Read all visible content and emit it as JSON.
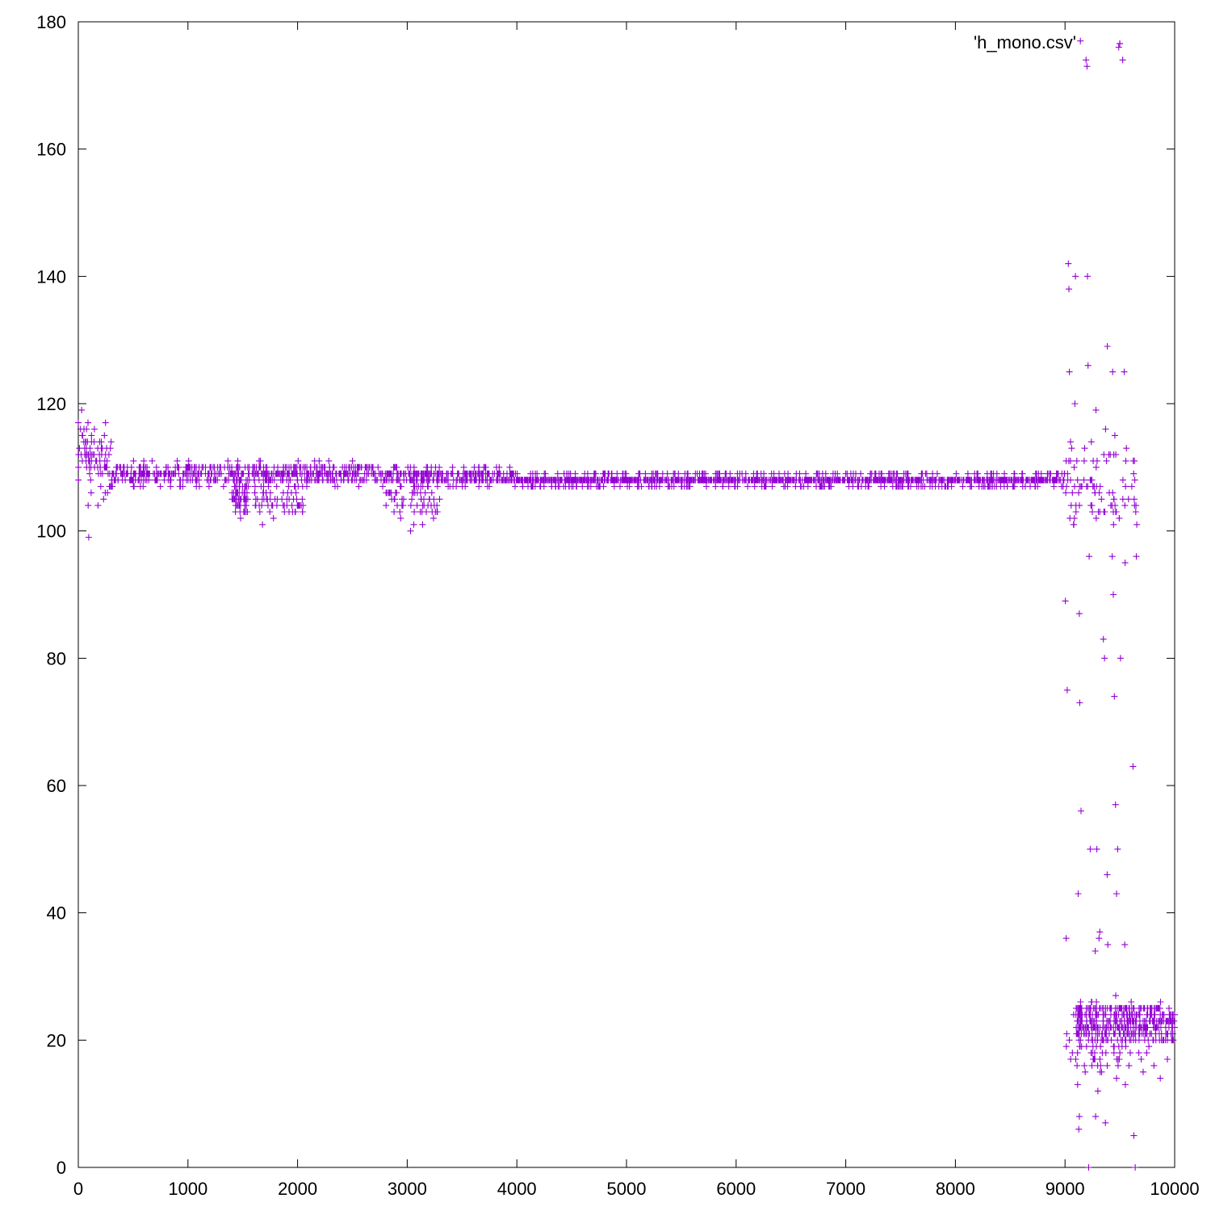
{
  "chart_data": {
    "type": "scatter",
    "title": "",
    "xlabel": "",
    "ylabel": "",
    "xlim": [
      0,
      10000
    ],
    "ylim": [
      0,
      180
    ],
    "x_ticks": [
      0,
      1000,
      2000,
      3000,
      4000,
      5000,
      6000,
      7000,
      8000,
      9000,
      10000
    ],
    "y_ticks": [
      0,
      20,
      40,
      60,
      80,
      100,
      120,
      140,
      160,
      180
    ],
    "x_tick_labels": [
      "0",
      "1000",
      "2000",
      "3000",
      "4000",
      "5000",
      "6000",
      "7000",
      "8000",
      "9000",
      "10000"
    ],
    "y_tick_labels": [
      "0",
      "20",
      "40",
      "60",
      "80",
      "100",
      "120",
      "140",
      "160",
      "180"
    ],
    "grid": false,
    "legend": {
      "position": "top-right",
      "marker": "plus"
    },
    "series": [
      {
        "name": "'h_mono.csv'",
        "color": "#9400d3",
        "marker": "plus",
        "description_ranges": [
          {
            "x_range": [
              0,
              300
            ],
            "y_range": [
              104,
              119
            ]
          },
          {
            "x_range": [
              300,
              2700
            ],
            "y_range": [
              107,
              111
            ]
          },
          {
            "x_range": [
              2700,
              4000
            ],
            "y_range": [
              107,
              110
            ]
          },
          {
            "x_range": [
              4000,
              9000
            ],
            "y_range": [
              107,
              109
            ]
          },
          {
            "x_range": [
              9000,
              9650
            ],
            "y_range": [
              0,
              177
            ]
          },
          {
            "x_range": [
              9100,
              10000
            ],
            "y_range": [
              12,
              27
            ]
          }
        ],
        "points": [
          [
            0,
            117
          ],
          [
            10,
            113
          ],
          [
            20,
            116
          ],
          [
            30,
            119
          ],
          [
            40,
            115
          ],
          [
            50,
            114
          ],
          [
            60,
            112
          ],
          [
            70,
            114
          ],
          [
            80,
            112
          ],
          [
            90,
            104
          ],
          [
            95,
            99
          ],
          [
            100,
            110
          ],
          [
            120,
            115
          ],
          [
            140,
            112
          ],
          [
            160,
            111
          ],
          [
            180,
            104
          ],
          [
            200,
            110
          ],
          [
            220,
            109
          ],
          [
            1480,
            102
          ],
          [
            1680,
            101
          ],
          [
            1780,
            102
          ],
          [
            1880,
            103
          ],
          [
            1980,
            103
          ],
          [
            2880,
            103
          ],
          [
            2940,
            102
          ],
          [
            3030,
            100
          ],
          [
            3060,
            101
          ],
          [
            3140,
            101
          ],
          [
            3240,
            102
          ],
          [
            9010,
            36
          ],
          [
            9020,
            75
          ],
          [
            9030,
            142
          ],
          [
            9035,
            138
          ],
          [
            9040,
            125
          ],
          [
            9050,
            114
          ],
          [
            9080,
            101
          ],
          [
            9090,
            120
          ],
          [
            9095,
            140
          ],
          [
            9110,
            16
          ],
          [
            9115,
            13
          ],
          [
            9120,
            43
          ],
          [
            9125,
            6
          ],
          [
            9130,
            8
          ],
          [
            9130,
            87
          ],
          [
            9140,
            177
          ],
          [
            9200,
            173
          ],
          [
            9205,
            140
          ],
          [
            9210,
            126
          ],
          [
            9215,
            0
          ],
          [
            9220,
            96
          ],
          [
            9230,
            50
          ],
          [
            9240,
            114
          ],
          [
            9290,
            50
          ],
          [
            9300,
            12
          ],
          [
            9310,
            36
          ],
          [
            9320,
            15
          ],
          [
            9350,
            83
          ],
          [
            9360,
            80
          ],
          [
            9370,
            116
          ],
          [
            9390,
            35
          ],
          [
            9430,
            96
          ],
          [
            9440,
            90
          ],
          [
            9450,
            74
          ],
          [
            9460,
            57
          ],
          [
            9470,
            43
          ],
          [
            9480,
            50
          ],
          [
            9490,
            176
          ],
          [
            9540,
            125
          ],
          [
            9545,
            35
          ],
          [
            9550,
            13
          ],
          [
            9560,
            113
          ],
          [
            9640,
            0
          ],
          [
            9645,
            103
          ],
          [
            9650,
            96
          ],
          [
            9655,
            101
          ]
        ]
      }
    ]
  }
}
